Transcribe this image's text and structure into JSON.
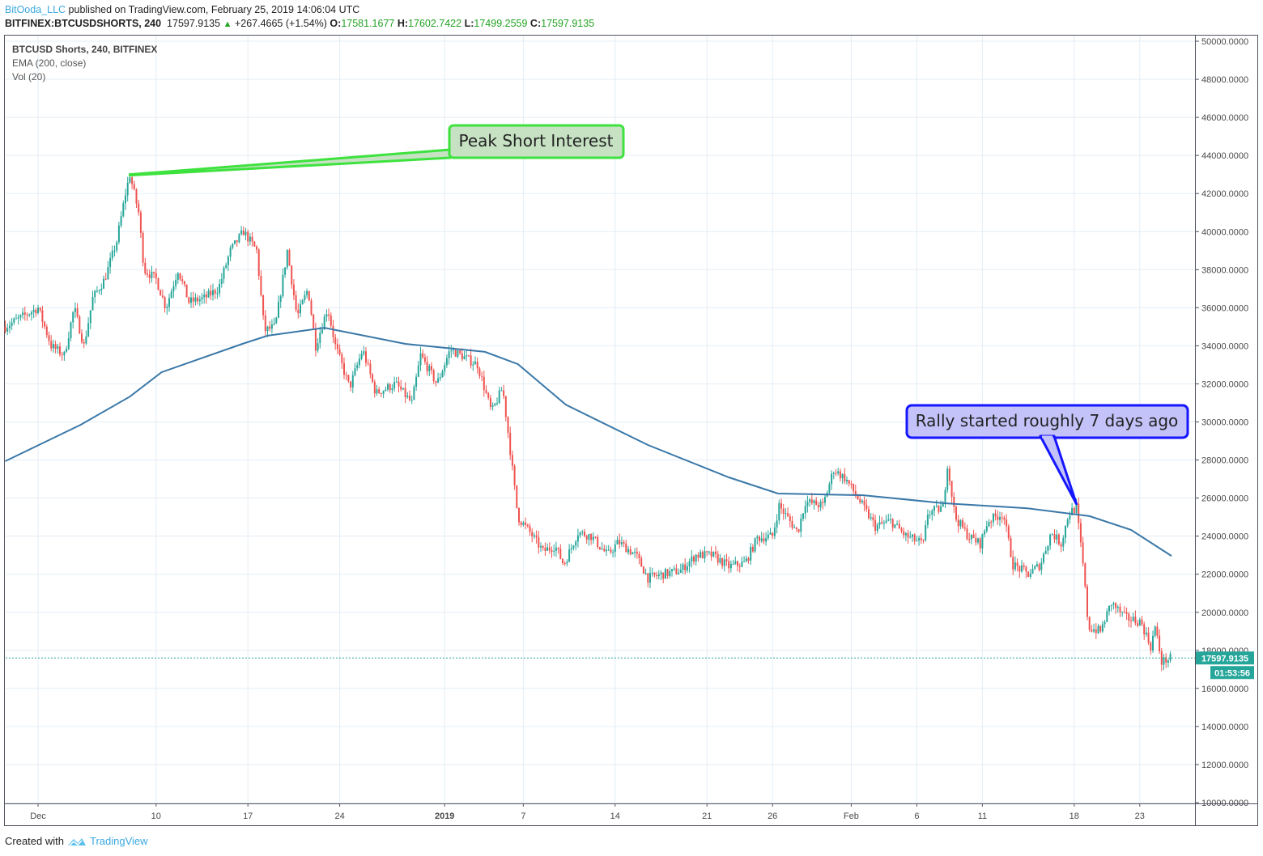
{
  "header": {
    "author": "BitOoda_LLC",
    "published_text": "published on TradingView.com, February 25, 2019 14:06:04 UTC",
    "symbol": "BITFINEX:BTCUSDSHORTS, 240",
    "last": "17597.9135",
    "change": "+267.4665 (+1.54%)",
    "o_label": "O:",
    "o": "17581.1677",
    "h_label": "H:",
    "h": "17602.7422",
    "l_label": "L:",
    "l": "17499.2559",
    "c_label": "C:",
    "c": "17597.9135"
  },
  "legend": {
    "series": "BTCUSD Shorts, 240, BITFINEX",
    "ema": "EMA (200, close)",
    "vol": "Vol (20)"
  },
  "footer": {
    "created_with": "Created with",
    "brand": "TradingView"
  },
  "colors": {
    "up": "#26a69a",
    "down": "#ef5350",
    "ema": "#3a78a8",
    "grid": "#e3edf5",
    "price_tag": "#26a69a"
  },
  "chart_data": {
    "type": "candlestick",
    "interval": "240",
    "ylim": [
      10000,
      50000
    ],
    "y_ticks": [
      "50000.0000",
      "48000.0000",
      "46000.0000",
      "44000.0000",
      "42000.0000",
      "40000.0000",
      "38000.0000",
      "36000.0000",
      "34000.0000",
      "32000.0000",
      "30000.0000",
      "28000.0000",
      "26000.0000",
      "24000.0000",
      "22000.0000",
      "20000.0000",
      "18000.0000",
      "16000.0000",
      "14000.0000",
      "12000.0000",
      "10000.0000"
    ],
    "x_ticks": [
      {
        "label": "Dec",
        "date": "2018-12-01",
        "bold": false
      },
      {
        "label": "10",
        "date": "2018-12-10",
        "bold": false
      },
      {
        "label": "17",
        "date": "2018-12-17",
        "bold": false
      },
      {
        "label": "24",
        "date": "2018-12-24",
        "bold": false
      },
      {
        "label": "2019",
        "date": "2019-01-01",
        "bold": true
      },
      {
        "label": "7",
        "date": "2019-01-07",
        "bold": false
      },
      {
        "label": "14",
        "date": "2019-01-14",
        "bold": false
      },
      {
        "label": "21",
        "date": "2019-01-21",
        "bold": false
      },
      {
        "label": "26",
        "date": "2019-01-26",
        "bold": false
      },
      {
        "label": "Feb",
        "date": "2019-02-01",
        "bold": false
      },
      {
        "label": "6",
        "date": "2019-02-06",
        "bold": false
      },
      {
        "label": "11",
        "date": "2019-02-11",
        "bold": false
      },
      {
        "label": "18",
        "date": "2019-02-18",
        "bold": false
      },
      {
        "label": "23",
        "date": "2019-02-23",
        "bold": false
      }
    ],
    "price_path": [
      [
        "2018-11-28T12:00",
        35000
      ],
      [
        "2018-12-01T00:00",
        36000
      ],
      [
        "2018-12-02T00:00",
        34000
      ],
      [
        "2018-12-03T00:00",
        33500
      ],
      [
        "2018-12-03T18:00",
        36000
      ],
      [
        "2018-12-04T12:00",
        34000
      ],
      [
        "2018-12-05T04:00",
        36500
      ],
      [
        "2018-12-06T02:00",
        37500
      ],
      [
        "2018-12-07T00:00",
        39500
      ],
      [
        "2018-12-07T16:00",
        42000
      ],
      [
        "2018-12-08T00:00",
        43000
      ],
      [
        "2018-12-08T16:00",
        41000
      ],
      [
        "2018-12-09T02:00",
        38000
      ],
      [
        "2018-12-10T00:00",
        37500
      ],
      [
        "2018-12-10T18:00",
        36000
      ],
      [
        "2018-12-11T16:00",
        38000
      ],
      [
        "2018-12-12T12:00",
        36300
      ],
      [
        "2018-12-13T16:00",
        36500
      ],
      [
        "2018-12-14T18:00",
        37000
      ],
      [
        "2018-12-15T16:00",
        39000
      ],
      [
        "2018-12-16T16:00",
        40000
      ],
      [
        "2018-12-17T16:00",
        39000
      ],
      [
        "2018-12-18T06:00",
        34800
      ],
      [
        "2018-12-19T02:00",
        35000
      ],
      [
        "2018-12-20T00:00",
        39000
      ],
      [
        "2018-12-20T18:00",
        35500
      ],
      [
        "2018-12-21T14:00",
        37000
      ],
      [
        "2018-12-22T04:00",
        34000
      ],
      [
        "2018-12-23T02:00",
        36000
      ],
      [
        "2018-12-23T16:00",
        34000
      ],
      [
        "2018-12-24T18:00",
        31800
      ],
      [
        "2018-12-25T18:00",
        33800
      ],
      [
        "2018-12-26T18:00",
        31500
      ],
      [
        "2018-12-28T06:00",
        32000
      ],
      [
        "2018-12-29T12:00",
        31000
      ],
      [
        "2018-12-30T04:00",
        33500
      ],
      [
        "2018-12-31T10:00",
        32000
      ],
      [
        "2019-01-01T10:00",
        33800
      ],
      [
        "2019-01-02T06:00",
        33500
      ],
      [
        "2019-01-03T12:00",
        33000
      ],
      [
        "2019-01-04T14:00",
        30500
      ],
      [
        "2019-01-05T10:00",
        31800
      ],
      [
        "2019-01-05T22:00",
        29000
      ],
      [
        "2019-01-06T14:00",
        25000
      ],
      [
        "2019-01-07T12:00",
        24200
      ],
      [
        "2019-01-08T12:00",
        23200
      ],
      [
        "2019-01-09T10:00",
        23500
      ],
      [
        "2019-01-10T02:00",
        22500
      ],
      [
        "2019-01-11T04:00",
        24200
      ],
      [
        "2019-01-12T04:00",
        24000
      ],
      [
        "2019-01-13T10:00",
        23000
      ],
      [
        "2019-01-14T06:00",
        23700
      ],
      [
        "2019-01-15T14:00",
        23000
      ],
      [
        "2019-01-16T12:00",
        21800
      ],
      [
        "2019-01-17T16:00",
        22000
      ],
      [
        "2019-01-19T00:00",
        22200
      ],
      [
        "2019-01-20T04:00",
        23000
      ],
      [
        "2019-01-21T10:00",
        23000
      ],
      [
        "2019-01-22T16:00",
        22400
      ],
      [
        "2019-01-23T22:00",
        22600
      ],
      [
        "2019-01-24T20:00",
        23900
      ],
      [
        "2019-01-26T00:00",
        24000
      ],
      [
        "2019-01-26T12:00",
        25600
      ],
      [
        "2019-01-27T22:00",
        24200
      ],
      [
        "2019-01-28T12:00",
        25800
      ],
      [
        "2019-01-29T20:00",
        25600
      ],
      [
        "2019-01-30T16:00",
        27500
      ],
      [
        "2019-01-31T14:00",
        27000
      ],
      [
        "2019-02-01T12:00",
        26000
      ],
      [
        "2019-02-02T20:00",
        24500
      ],
      [
        "2019-02-04T00:00",
        24800
      ],
      [
        "2019-02-05T04:00",
        24000
      ],
      [
        "2019-02-06T12:00",
        23600
      ],
      [
        "2019-02-06T20:00",
        25200
      ],
      [
        "2019-02-08T00:00",
        25500
      ],
      [
        "2019-02-08T08:00",
        27800
      ],
      [
        "2019-02-08T22:00",
        25000
      ],
      [
        "2019-02-09T22:00",
        24000
      ],
      [
        "2019-02-10T20:00",
        23600
      ],
      [
        "2019-02-11T10:00",
        24800
      ],
      [
        "2019-02-12T14:00",
        25200
      ],
      [
        "2019-02-13T08:00",
        22500
      ],
      [
        "2019-02-14T12:00",
        22000
      ],
      [
        "2019-02-15T10:00",
        22500
      ],
      [
        "2019-02-16T06:00",
        24200
      ],
      [
        "2019-02-17T00:00",
        23600
      ],
      [
        "2019-02-17T14:00",
        25200
      ],
      [
        "2019-02-18T04:00",
        25500
      ],
      [
        "2019-02-18T16:00",
        22500
      ],
      [
        "2019-02-19T02:00",
        19200
      ],
      [
        "2019-02-20T00:00",
        19000
      ],
      [
        "2019-02-20T20:00",
        20500
      ],
      [
        "2019-02-21T22:00",
        19700
      ],
      [
        "2019-02-23T02:00",
        19500
      ],
      [
        "2019-02-23T20:00",
        18200
      ],
      [
        "2019-02-24T04:00",
        19200
      ],
      [
        "2019-02-24T16:00",
        17400
      ],
      [
        "2019-02-25T10:00",
        17598
      ]
    ],
    "ema_path": [
      [
        "2018-11-28T12:00",
        27940
      ],
      [
        "2018-12-04T06:00",
        29850
      ],
      [
        "2018-12-08T00:00",
        31330
      ],
      [
        "2018-12-10T10:00",
        32610
      ],
      [
        "2018-12-16T14:00",
        34100
      ],
      [
        "2018-12-18T12:00",
        34530
      ],
      [
        "2018-12-22T20:00",
        34950
      ],
      [
        "2018-12-29T00:00",
        34100
      ],
      [
        "2019-01-04T02:00",
        33680
      ],
      [
        "2019-01-06T14:00",
        33040
      ],
      [
        "2019-01-10T06:00",
        30900
      ],
      [
        "2019-01-16T12:00",
        28790
      ],
      [
        "2019-01-22T16:00",
        27090
      ],
      [
        "2019-01-26T10:00",
        26240
      ],
      [
        "2019-02-01T22:00",
        26150
      ],
      [
        "2019-02-08T02:00",
        25730
      ],
      [
        "2019-02-14T08:00",
        25470
      ],
      [
        "2019-02-19T04:00",
        25050
      ],
      [
        "2019-02-22T08:00",
        24330
      ],
      [
        "2019-02-25T10:00",
        22960
      ]
    ],
    "last_price_label": "17597.9135",
    "countdown_label": "01:53:56",
    "annotations": [
      {
        "text": "Peak Short Interest",
        "date": "2018-12-08T00:00",
        "price": 43000,
        "fill": "#c6e2c3",
        "border": "#3ee23e"
      },
      {
        "text": "Rally started roughly 7 days ago",
        "date": "2019-02-18T04:00",
        "price": 25700,
        "fill": "#c3c3fa",
        "border": "#1515ff"
      }
    ]
  }
}
